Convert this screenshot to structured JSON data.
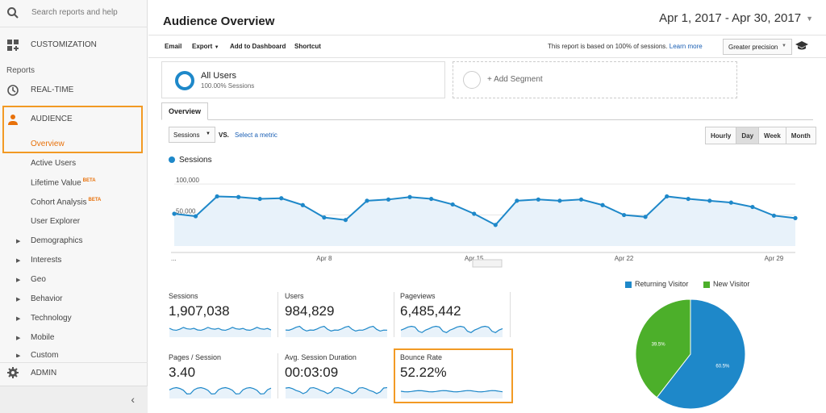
{
  "sidebar": {
    "search_placeholder": "Search reports and help",
    "customization": "CUSTOMIZATION",
    "section_label": "Reports",
    "realtime": "REAL-TIME",
    "audience": "AUDIENCE",
    "overview": "Overview",
    "sub_items": [
      {
        "label": "Active Users"
      },
      {
        "label": "Lifetime Value",
        "badge": "BETA"
      },
      {
        "label": "Cohort Analysis",
        "badge": "BETA"
      },
      {
        "label": "User Explorer"
      }
    ],
    "expandable": [
      "Demographics",
      "Interests",
      "Geo",
      "Behavior",
      "Technology",
      "Mobile",
      "Custom"
    ],
    "admin": "ADMIN",
    "collapse_icon": "chevron-left-icon"
  },
  "header": {
    "title": "Audience Overview",
    "date_range": "Apr 1, 2017 - Apr 30, 2017"
  },
  "toolbar": {
    "email": "Email",
    "export": "Export",
    "add_dashboard": "Add to Dashboard",
    "shortcut": "Shortcut",
    "note": "This report is based on 100% of sessions.",
    "learn_more": "Learn more",
    "precision": "Greater precision"
  },
  "segment": {
    "name": "All Users",
    "sub": "100.00% Sessions",
    "add": "+ Add Segment"
  },
  "tabs": {
    "overview": "Overview"
  },
  "controls": {
    "metric": "Sessions",
    "vs": "VS.",
    "select_metric": "Select a metric",
    "periods": [
      "Hourly",
      "Day",
      "Week",
      "Month"
    ],
    "active_period": "Day"
  },
  "chart_data": {
    "type": "area",
    "series_name": "Sessions",
    "y_ticks": [
      "100,000",
      "50,000"
    ],
    "ylim": [
      0,
      130000
    ],
    "x_tick_labels": [
      "...",
      "Apr 8",
      "Apr 15",
      "Apr 22",
      "Apr 29"
    ],
    "values": [
      52000,
      48000,
      80000,
      79000,
      76000,
      77000,
      66000,
      46000,
      42000,
      73000,
      75000,
      79000,
      76000,
      67000,
      52000,
      34000,
      73000,
      75000,
      73000,
      75000,
      66000,
      50000,
      47000,
      80000,
      76000,
      73000,
      70000,
      63000,
      49000,
      45000
    ],
    "color": "#1e88c9"
  },
  "metrics": [
    {
      "name": "Sessions",
      "value": "1,907,038"
    },
    {
      "name": "Users",
      "value": "984,829"
    },
    {
      "name": "Pageviews",
      "value": "6,485,442"
    },
    {
      "name": "Pages / Session",
      "value": "3.40"
    },
    {
      "name": "Avg. Session Duration",
      "value": "00:03:09"
    },
    {
      "name": "Bounce Rate",
      "value": "52.22%"
    }
  ],
  "pie": {
    "legend": [
      {
        "label": "Returning Visitor",
        "color": "#1e88c9"
      },
      {
        "label": "New Visitor",
        "color": "#4caf2a"
      }
    ],
    "slices": [
      {
        "label": "60.5%",
        "value": 60.5,
        "color": "#1e88c9"
      },
      {
        "label": "39.5%",
        "value": 39.5,
        "color": "#4caf2a"
      }
    ]
  },
  "accent": "#f29a24"
}
